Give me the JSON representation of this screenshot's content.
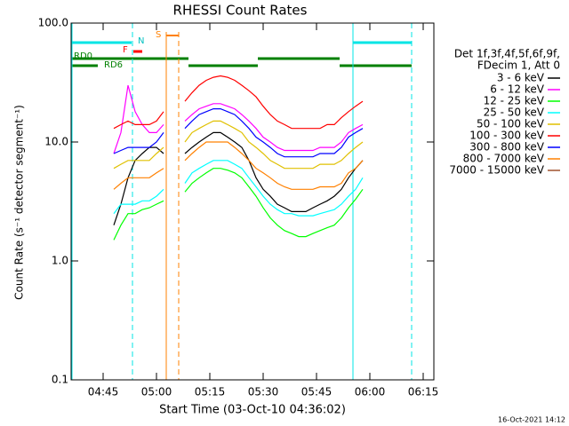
{
  "chart_data": {
    "type": "line",
    "title": "RHESSI Count Rates",
    "xlabel": "Start Time (03-Oct-10 04:36:02)",
    "ylabel": "Count Rate (s⁻¹ detector segment⁻¹)",
    "legend_title": [
      "Det 1f,3f,4f,5f,6f,9f,",
      "FDecim 1, Att 0"
    ],
    "footer": "16-Oct-2021 14:12",
    "annotations": [
      "RD0",
      "RD6",
      "F",
      "N",
      "S"
    ],
    "log_y": true,
    "xlim": [
      "04:36",
      "06:18"
    ],
    "xticks": [
      "04:45",
      "05:00",
      "05:15",
      "05:30",
      "05:45",
      "06:00",
      "06:15"
    ],
    "ylim": [
      0.1,
      100
    ],
    "yticks": [
      0.1,
      {
        "value": 1,
        "label": "1.0"
      },
      {
        "value": 10,
        "label": "10.0"
      },
      {
        "value": 100,
        "label": "100.0"
      }
    ],
    "x": [
      "04:48",
      "04:50",
      "04:52",
      "04:54",
      "04:56",
      "04:58",
      "05:00",
      "05:02",
      "05:04",
      "05:06",
      "05:08",
      "05:10",
      "05:12",
      "05:14",
      "05:16",
      "05:18",
      "05:20",
      "05:22",
      "05:24",
      "05:26",
      "05:28",
      "05:30",
      "05:32",
      "05:34",
      "05:36",
      "05:38",
      "05:40",
      "05:42",
      "05:44",
      "05:46",
      "05:48",
      "05:50",
      "05:52",
      "05:54",
      "05:56",
      "05:58"
    ],
    "series": [
      {
        "name": "3 - 6 keV",
        "color": "#000000",
        "values": [
          2,
          3,
          5,
          7,
          8,
          9,
          9,
          8,
          null,
          null,
          8,
          9,
          10,
          11,
          12,
          12,
          11,
          10,
          9,
          7,
          5,
          4,
          3.5,
          3,
          2.8,
          2.6,
          2.6,
          2.6,
          2.8,
          3,
          3.2,
          3.5,
          4,
          5,
          6,
          7
        ]
      },
      {
        "name": "6 - 12 keV",
        "color": "#ff00ff",
        "values": [
          8,
          12,
          30,
          18,
          14,
          12,
          12,
          14,
          null,
          null,
          15,
          17,
          19,
          20,
          21,
          21,
          20,
          19,
          17,
          15,
          13,
          11,
          10,
          9,
          8.5,
          8.5,
          8.5,
          8.5,
          8.5,
          9,
          9,
          9,
          10,
          12,
          13,
          14
        ]
      },
      {
        "name": "12 - 25 keV",
        "color": "#00ff00",
        "values": [
          1.5,
          2,
          2.5,
          2.5,
          2.7,
          2.8,
          3,
          3.2,
          null,
          null,
          3.8,
          4.5,
          5,
          5.5,
          6,
          6,
          5.8,
          5.5,
          5,
          4.2,
          3.5,
          2.8,
          2.3,
          2,
          1.8,
          1.7,
          1.6,
          1.6,
          1.7,
          1.8,
          1.9,
          2,
          2.3,
          2.8,
          3.3,
          4
        ]
      },
      {
        "name": "25 - 50 keV",
        "color": "#00ffff",
        "values": [
          2.5,
          3,
          3,
          3,
          3.2,
          3.2,
          3.5,
          4,
          null,
          null,
          4.5,
          5.5,
          6,
          6.5,
          7,
          7,
          7,
          6.5,
          6,
          5,
          4.2,
          3.5,
          3,
          2.7,
          2.5,
          2.5,
          2.4,
          2.4,
          2.4,
          2.5,
          2.6,
          2.7,
          3,
          3.5,
          4,
          5
        ]
      },
      {
        "name": "50 - 100 keV",
        "color": "#e0c000",
        "values": [
          6,
          6.5,
          7,
          7,
          7,
          7,
          8,
          9,
          null,
          null,
          10,
          12,
          13,
          14,
          15,
          15,
          14,
          13,
          12,
          10,
          9,
          8,
          7,
          6.5,
          6,
          6,
          6,
          6,
          6,
          6.5,
          6.5,
          6.5,
          7,
          8,
          9,
          10
        ]
      },
      {
        "name": "100 - 300 keV",
        "color": "#ff0000",
        "values": [
          13,
          14,
          15,
          14,
          14,
          14,
          15,
          18,
          null,
          null,
          22,
          26,
          30,
          33,
          35,
          36,
          35,
          33,
          30,
          27,
          24,
          20,
          17,
          15,
          14,
          13,
          13,
          13,
          13,
          13,
          14,
          14,
          16,
          18,
          20,
          22
        ]
      },
      {
        "name": "300 - 800 keV",
        "color": "#0000ff",
        "values": [
          8,
          8.5,
          9,
          9,
          9,
          9,
          10,
          12,
          null,
          null,
          13,
          15,
          17,
          18,
          19,
          19,
          18,
          17,
          15,
          13,
          11,
          10,
          9,
          8,
          7.5,
          7.5,
          7.5,
          7.5,
          7.5,
          8,
          8,
          8,
          9,
          11,
          12,
          13
        ]
      },
      {
        "name": "800 - 7000 keV",
        "color": "#ff8000",
        "values": [
          4,
          4.5,
          5,
          5,
          5,
          5,
          5.5,
          6,
          null,
          null,
          7,
          8,
          9,
          10,
          10,
          10,
          10,
          9,
          8,
          7,
          6,
          5.5,
          5,
          4.5,
          4.2,
          4,
          4,
          4,
          4,
          4.2,
          4.2,
          4.2,
          4.5,
          5.5,
          6,
          7
        ]
      },
      {
        "name": "7000 - 15000 keV",
        "color": "#a0522d",
        "values": [
          null,
          null,
          null,
          null,
          null,
          null,
          null,
          null,
          null,
          null,
          null,
          null,
          null,
          null,
          null,
          null,
          null,
          null,
          null,
          null,
          null,
          null,
          null,
          null,
          null,
          null,
          null,
          null,
          null,
          null,
          null,
          null,
          null,
          null,
          null,
          null
        ]
      }
    ]
  }
}
